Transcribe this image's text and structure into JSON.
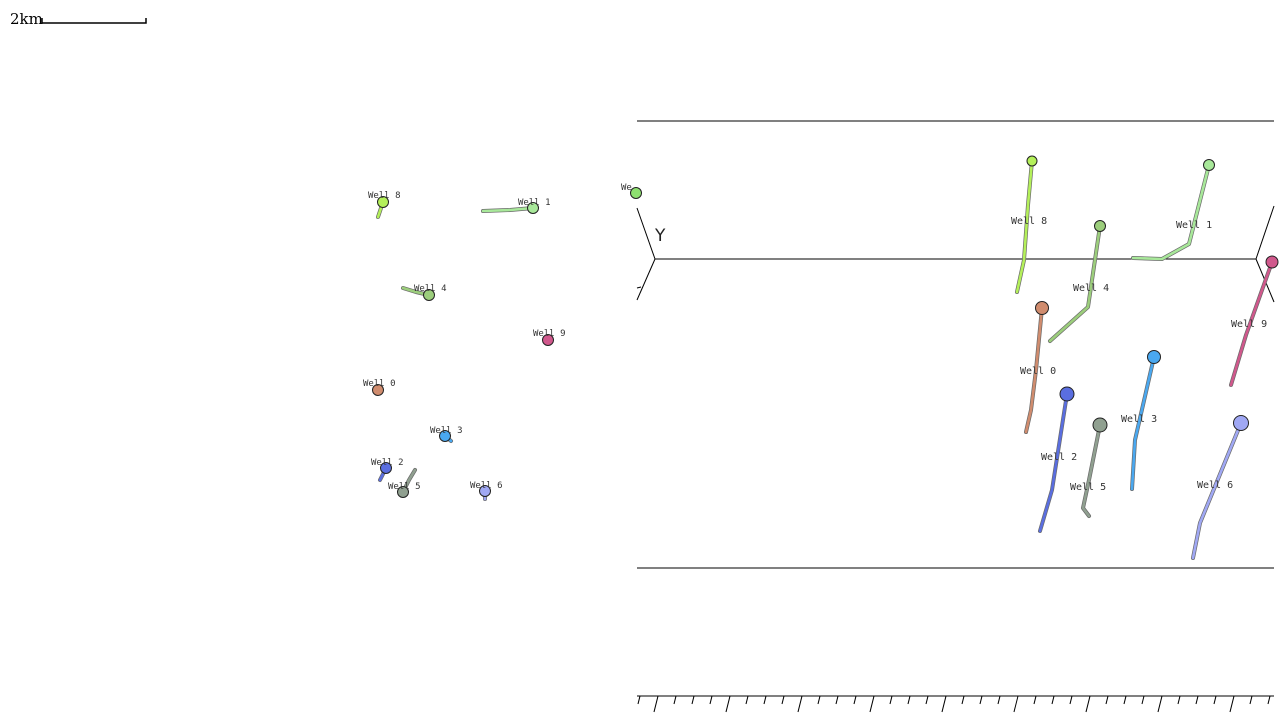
{
  "scale_bar": {
    "label": "2km"
  },
  "axis": {
    "y_label": "Y"
  },
  "colors": {
    "well_8": "#b4f05a",
    "well_1": "#a8e89a",
    "well_4": "#9cce7c",
    "well_9": "#d0588c",
    "well_0": "#d08c6e",
    "well_3": "#4aa8f0",
    "well_2": "#5a6ee0",
    "well_5": "#90a090",
    "well_6": "#a0a8f4",
    "partial": "#8ee070"
  },
  "map_view": {
    "wells": [
      {
        "id": "well_8",
        "label": "Well 8"
      },
      {
        "id": "well_1",
        "label": "Well 1"
      },
      {
        "id": "well_4",
        "label": "Well 4"
      },
      {
        "id": "well_9",
        "label": "Well 9"
      },
      {
        "id": "well_0",
        "label": "Well 0"
      },
      {
        "id": "well_3",
        "label": "Well 3"
      },
      {
        "id": "well_2",
        "label": "Well 2"
      },
      {
        "id": "well_5",
        "label": "Well 5"
      },
      {
        "id": "well_6",
        "label": "Well 6"
      }
    ],
    "partial_label": "We"
  },
  "view_3d": {
    "wells": [
      {
        "id": "well_8",
        "label": "Well 8"
      },
      {
        "id": "well_1",
        "label": "Well 1"
      },
      {
        "id": "well_4",
        "label": "Well 4"
      },
      {
        "id": "well_9",
        "label": "Well 9"
      },
      {
        "id": "well_0",
        "label": "Well 0"
      },
      {
        "id": "well_3",
        "label": "Well 3"
      },
      {
        "id": "well_2",
        "label": "Well 2"
      },
      {
        "id": "well_5",
        "label": "Well 5"
      },
      {
        "id": "well_6",
        "label": "Well 6"
      }
    ]
  }
}
